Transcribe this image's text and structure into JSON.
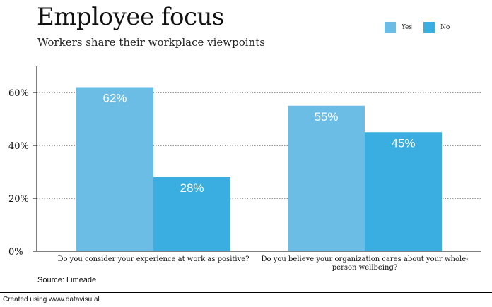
{
  "chart_data": {
    "type": "bar",
    "title": "Employee focus",
    "subtitle": "Workers share their workplace viewpoints",
    "categories": [
      [
        "Do you consider your experience at work as positive?"
      ],
      [
        "Do you believe your organization cares about your whole-",
        "person wellbeing?"
      ]
    ],
    "series": [
      {
        "name": "Yes",
        "values": [
          62,
          55
        ],
        "labels": [
          "62%",
          "55%"
        ],
        "color": "#6bbde6"
      },
      {
        "name": "No",
        "values": [
          28,
          45
        ],
        "labels": [
          "28%",
          "45%"
        ],
        "color": "#3aaee0"
      }
    ],
    "yticks": [
      0,
      20,
      40,
      60
    ],
    "ytick_labels": [
      "0%",
      "20%",
      "40%",
      "60%"
    ],
    "ylim": [
      0,
      70
    ],
    "grid": "dotted horizontal",
    "legend": "top-right",
    "source": "Source: Limeade"
  },
  "footer": "Created using www.datavisu.al"
}
